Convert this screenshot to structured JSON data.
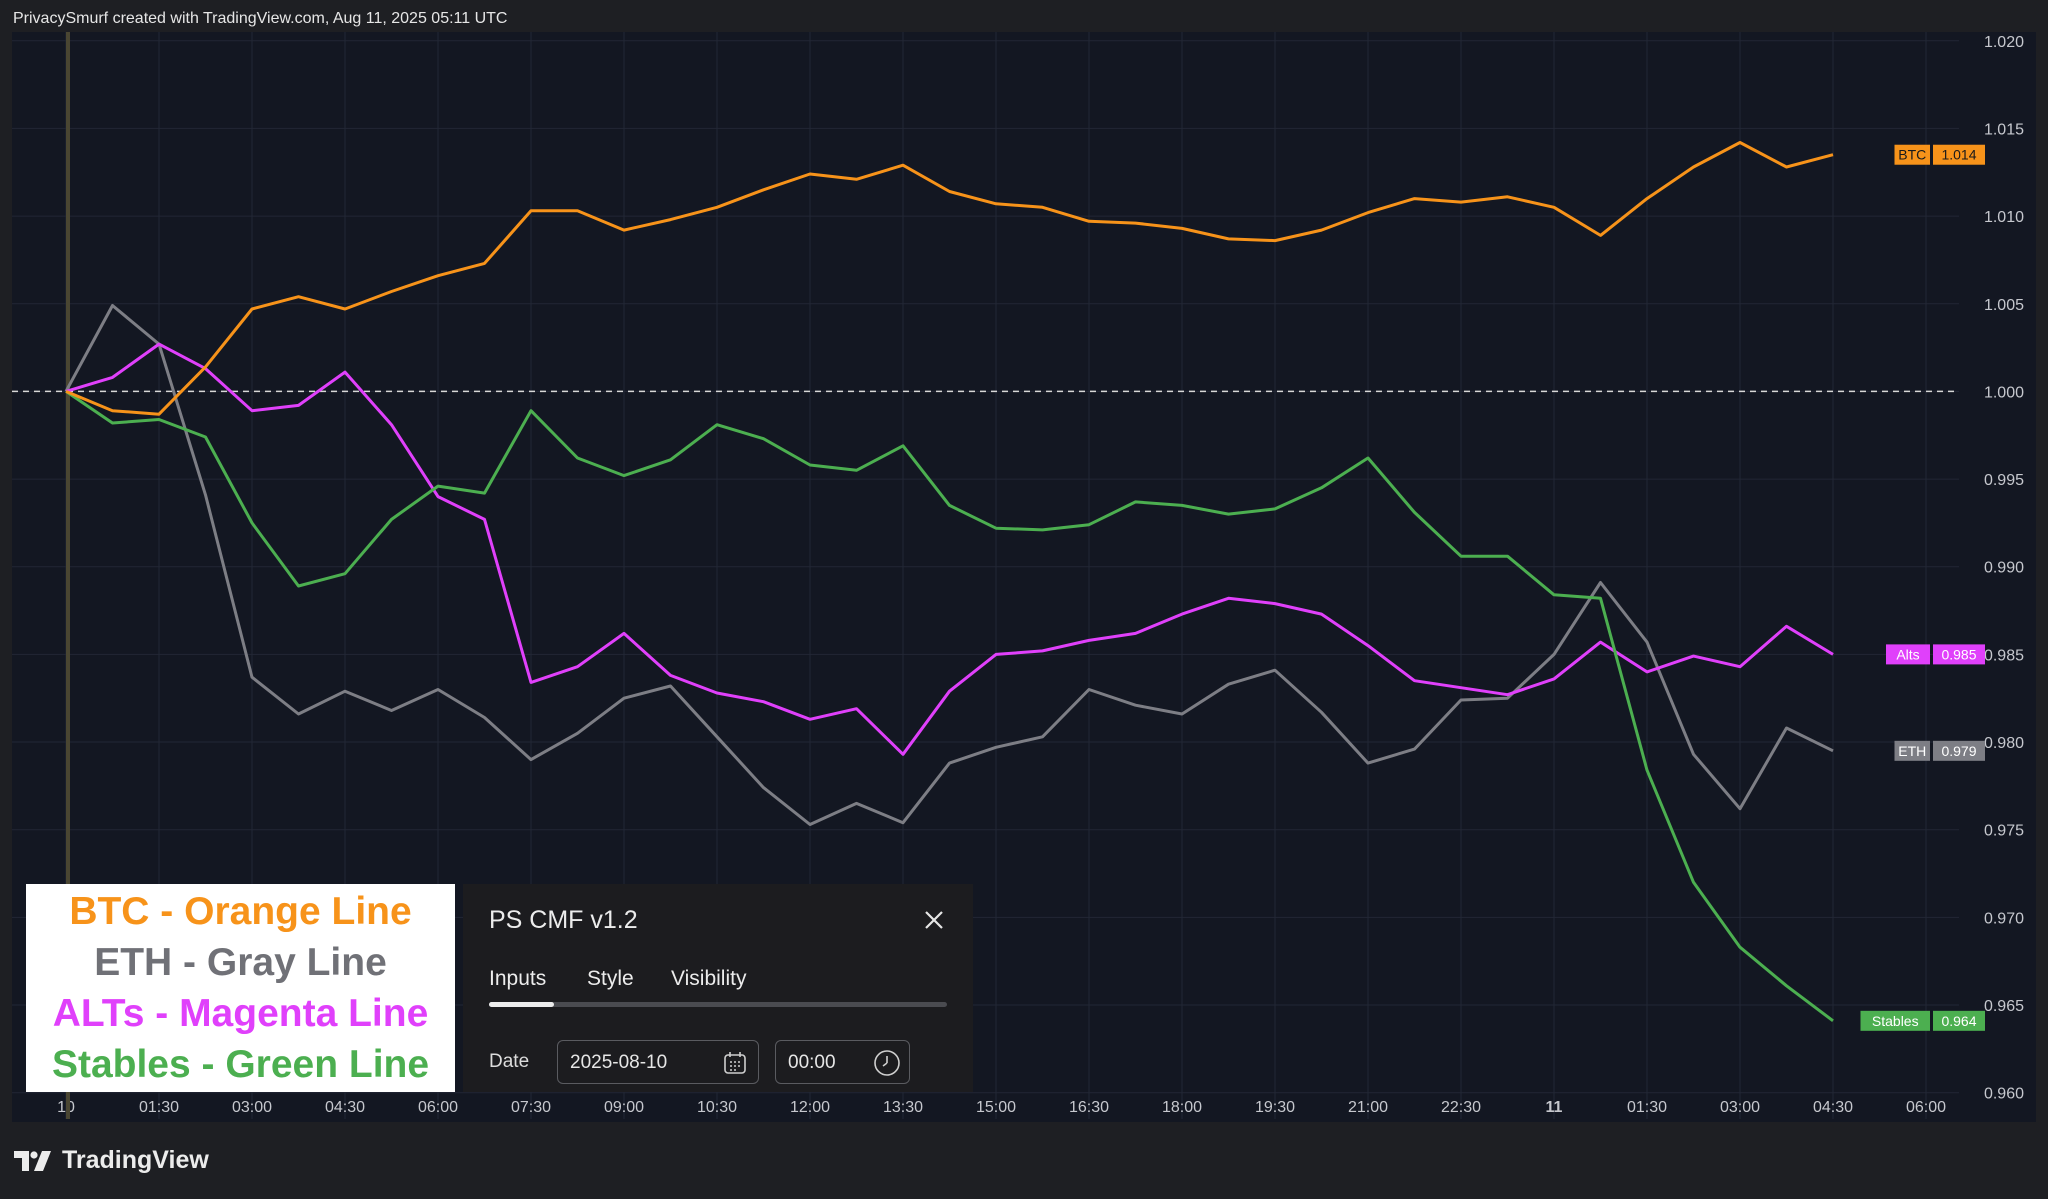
{
  "caption": "PrivacySmurf created with TradingView.com, Aug 11, 2025 05:11 UTC",
  "brand": "TradingView",
  "legend": [
    {
      "text": "BTC - Orange Line",
      "color": "#f7931a"
    },
    {
      "text": "ETH - Gray Line",
      "color": "#707177"
    },
    {
      "text": "ALTs - Magenta Line",
      "color": "#e040fb"
    },
    {
      "text": "Stables - Green Line",
      "color": "#4caf50"
    }
  ],
  "panel": {
    "title": "PS CMF v1.2",
    "tabs": [
      "Inputs",
      "Style",
      "Visibility"
    ],
    "date_label": "Date",
    "date_value": "2025-08-10",
    "time_value": "00:00"
  },
  "chart_data": {
    "type": "line",
    "x_ticks": [
      "10",
      "01:30",
      "03:00",
      "04:30",
      "06:00",
      "07:30",
      "09:00",
      "10:30",
      "12:00",
      "13:30",
      "15:00",
      "16:30",
      "18:00",
      "19:30",
      "21:00",
      "22:30",
      "11",
      "01:30",
      "03:00",
      "04:30",
      "06:00"
    ],
    "x_tick_index": [
      0,
      2,
      4,
      6,
      8,
      10,
      12,
      14,
      16,
      18,
      20,
      22,
      24,
      26,
      28,
      30,
      32,
      34,
      36,
      38,
      40
    ],
    "y_ticks": [
      0.96,
      0.965,
      0.97,
      0.975,
      0.98,
      0.985,
      0.99,
      0.995,
      1.0,
      1.005,
      1.01,
      1.015,
      1.02
    ],
    "ylim": [
      0.9585,
      1.0205
    ],
    "reference_line": 1.0,
    "series": [
      {
        "name": "BTC",
        "color": "#f7931a",
        "last_label": "1.014",
        "values": [
          1.0,
          0.9989,
          0.9987,
          1.0014,
          1.0047,
          1.0054,
          1.0047,
          1.0057,
          1.0066,
          1.0073,
          1.0103,
          1.0103,
          1.0092,
          1.0098,
          1.0105,
          1.0115,
          1.0124,
          1.0121,
          1.0129,
          1.0114,
          1.0107,
          1.0105,
          1.0097,
          1.0096,
          1.0093,
          1.0087,
          1.0086,
          1.0092,
          1.0102,
          1.011,
          1.0108,
          1.0111,
          1.0105,
          1.0089,
          1.011,
          1.0128,
          1.0142,
          1.0128,
          1.0135
        ]
      },
      {
        "name": "ETH",
        "color": "#7d7e85",
        "last_label": "0.979",
        "values": [
          1.0,
          1.0049,
          1.0027,
          0.9941,
          0.9837,
          0.9816,
          0.9829,
          0.9818,
          0.983,
          0.9814,
          0.979,
          0.9805,
          0.9825,
          0.9832,
          0.9803,
          0.9774,
          0.9753,
          0.9765,
          0.9754,
          0.9788,
          0.9797,
          0.9803,
          0.983,
          0.9821,
          0.9816,
          0.9833,
          0.9841,
          0.9817,
          0.9788,
          0.9796,
          0.9824,
          0.9825,
          0.985,
          0.9891,
          0.9857,
          0.9793,
          0.9762,
          0.9808,
          0.9795
        ]
      },
      {
        "name": "Alts",
        "color": "#e040fb",
        "last_label": "0.985",
        "values": [
          1.0,
          1.0008,
          1.0027,
          1.0013,
          0.9989,
          0.9992,
          1.0011,
          0.9981,
          0.994,
          0.9927,
          0.9834,
          0.9843,
          0.9862,
          0.9838,
          0.9828,
          0.9823,
          0.9813,
          0.9819,
          0.9793,
          0.9829,
          0.985,
          0.9852,
          0.9858,
          0.9862,
          0.9873,
          0.9882,
          0.9879,
          0.9873,
          0.9855,
          0.9835,
          0.9831,
          0.9827,
          0.9836,
          0.9857,
          0.984,
          0.9849,
          0.9843,
          0.9866,
          0.985
        ]
      },
      {
        "name": "Stables",
        "color": "#4caf50",
        "last_label": "0.964",
        "values": [
          1.0,
          0.9982,
          0.9984,
          0.9974,
          0.9925,
          0.9889,
          0.9896,
          0.9927,
          0.9946,
          0.9942,
          0.9989,
          0.9962,
          0.9952,
          0.9961,
          0.9981,
          0.9973,
          0.9958,
          0.9955,
          0.9969,
          0.9935,
          0.9922,
          0.9921,
          0.9924,
          0.9937,
          0.9935,
          0.993,
          0.9933,
          0.9945,
          0.9962,
          0.9931,
          0.9906,
          0.9906,
          0.9884,
          0.9882,
          0.9784,
          0.972,
          0.9683,
          0.9661,
          0.9641
        ]
      }
    ]
  }
}
